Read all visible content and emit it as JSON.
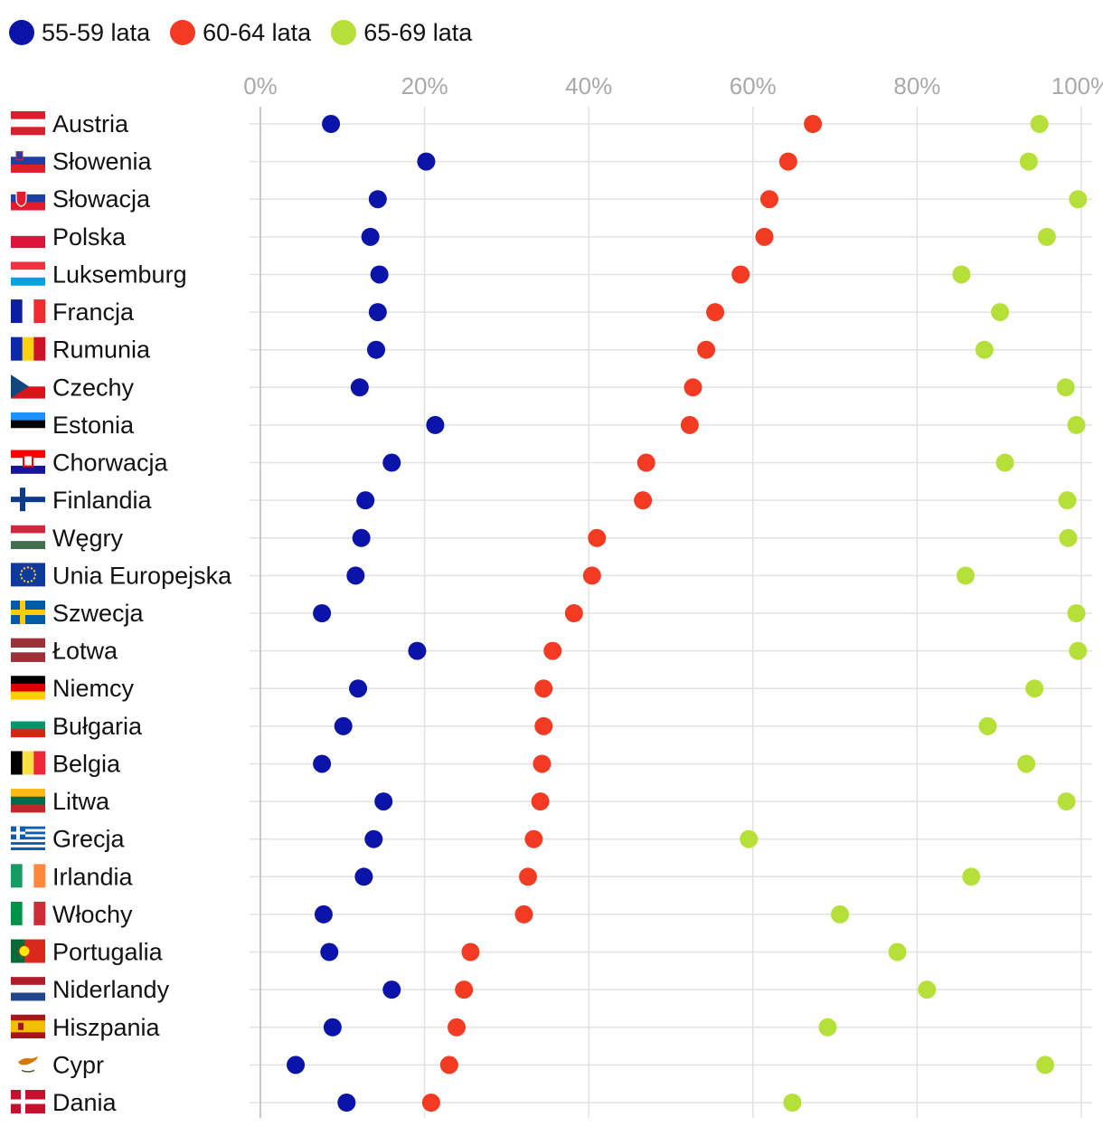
{
  "legend": [
    {
      "name": "55-59 lata",
      "color": "#0a14a8"
    },
    {
      "name": "60-64 lata",
      "color": "#f23b22"
    },
    {
      "name": "65-69 lata",
      "color": "#b5e03a"
    }
  ],
  "chart_data": {
    "type": "scatter",
    "orientation": "horizontal-dot-plot",
    "x_ticks": [
      "0%",
      "20%",
      "40%",
      "60%",
      "80%",
      "100%"
    ],
    "xlim": [
      0,
      100
    ],
    "grid": true,
    "legend_position": "top-left",
    "categories": [
      "Austria",
      "Słowenia",
      "Słowacja",
      "Polska",
      "Luksemburg",
      "Francja",
      "Rumunia",
      "Czechy",
      "Estonia",
      "Chorwacja",
      "Finlandia",
      "Węgry",
      "Unia Europejska",
      "Szwecja",
      "Łotwa",
      "Niemcy",
      "Bułgaria",
      "Belgia",
      "Litwa",
      "Grecja",
      "Irlandia",
      "Włochy",
      "Portugalia",
      "Niderlandy",
      "Hiszpania",
      "Cypr",
      "Dania"
    ],
    "series": [
      {
        "name": "55-59 lata",
        "color": "#0a14a8",
        "values": [
          8.6,
          20.2,
          14.3,
          13.4,
          14.5,
          14.3,
          14.1,
          12.1,
          21.3,
          16.0,
          12.8,
          12.3,
          11.6,
          7.5,
          19.1,
          11.9,
          10.1,
          7.5,
          15.0,
          13.8,
          12.6,
          7.7,
          8.4,
          16.0,
          8.8,
          4.3,
          10.5
        ]
      },
      {
        "name": "60-64 lata",
        "color": "#f23b22",
        "values": [
          67.3,
          64.3,
          62.0,
          61.4,
          58.5,
          55.4,
          54.3,
          52.7,
          52.3,
          47.0,
          46.6,
          41.0,
          40.4,
          38.2,
          35.6,
          34.5,
          34.5,
          34.3,
          34.1,
          33.3,
          32.6,
          32.1,
          25.6,
          24.8,
          23.9,
          23.0,
          20.8
        ]
      },
      {
        "name": "65-69 lata",
        "color": "#b5e03a",
        "values": [
          94.9,
          93.6,
          99.6,
          95.8,
          85.4,
          90.1,
          88.2,
          98.1,
          99.4,
          90.7,
          98.3,
          98.4,
          85.9,
          99.4,
          99.6,
          94.3,
          88.6,
          93.3,
          98.2,
          59.5,
          86.6,
          70.6,
          77.6,
          81.2,
          69.1,
          95.6,
          64.8
        ]
      }
    ]
  }
}
